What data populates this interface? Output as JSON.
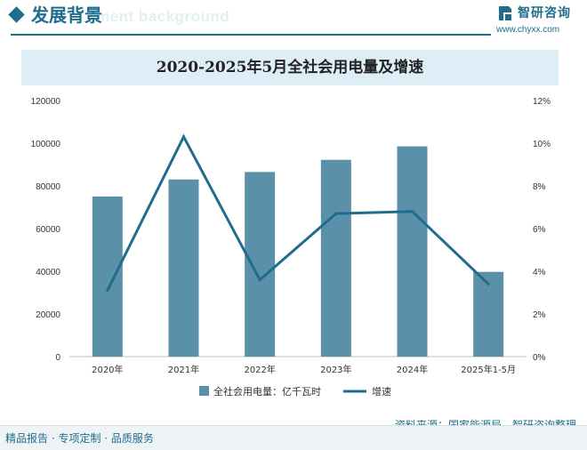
{
  "section": {
    "title": "发展背景",
    "watermark": "ment background"
  },
  "brand": {
    "name": "智研咨询",
    "url": "www.chyxx.com"
  },
  "colors": {
    "primary": "#1f6d8d",
    "bar": "#5b91a8",
    "line": "#1f6d8d",
    "title_band": "#deeef7"
  },
  "chart_data": {
    "type": "bar",
    "title": "2020-2025年5月全社会用电量及增速",
    "categories": [
      "2020年",
      "2021年",
      "2022年",
      "2023年",
      "2024年",
      "2025年1-5月"
    ],
    "series": [
      {
        "name": "全社会用电量：亿千瓦时",
        "type": "bar",
        "axis": "left",
        "values": [
          75000,
          83000,
          86500,
          92200,
          98500,
          39700
        ]
      },
      {
        "name": "增速",
        "type": "line",
        "axis": "right",
        "values": [
          3.1,
          10.3,
          3.6,
          6.7,
          6.8,
          3.4
        ]
      }
    ],
    "y_left": {
      "min": 0,
      "max": 120000,
      "ticks": [
        "0",
        "20000",
        "40000",
        "60000",
        "80000",
        "100000",
        "120000"
      ]
    },
    "y_right": {
      "min": 0,
      "max": 12,
      "ticks": [
        "0%",
        "2%",
        "4%",
        "6%",
        "8%",
        "10%",
        "12%"
      ]
    },
    "grid": false,
    "legend_position": "bottom"
  },
  "footer": {
    "left": "精品报告 · 专项定制 · 品质服务",
    "source": "资料来源：国家能源局，智研咨询整理"
  }
}
